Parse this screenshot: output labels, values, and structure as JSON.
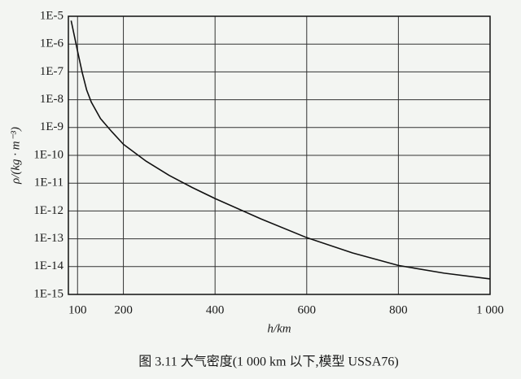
{
  "chart_data": {
    "type": "line",
    "y_label": "ρ/(kg · m⁻³)",
    "x_label": "h/km",
    "caption": "图 3.11   大气密度(1 000 km 以下,模型 USSA76)",
    "log_y": true,
    "grid": true,
    "x": [
      86,
      90,
      100,
      110,
      120,
      130,
      150,
      175,
      200,
      250,
      300,
      350,
      400,
      500,
      600,
      700,
      800,
      900,
      1000
    ],
    "series": [
      {
        "color": "#111111",
        "values": [
          6.96e-06,
          3.4e-06,
          5.6e-07,
          9.7e-08,
          2.2e-08,
          8.2e-09,
          2.1e-09,
          7e-10,
          2.5e-10,
          6.1e-11,
          1.9e-11,
          7e-12,
          2.8e-12,
          5.2e-13,
          1.1e-13,
          3.1e-14,
          1.1e-14,
          5.8e-15,
          3.6e-15
        ]
      }
    ],
    "xlim": [
      80,
      1000
    ],
    "xticks": [
      100,
      200,
      400,
      600,
      800,
      {
        "value": 1000,
        "label": "1 000"
      }
    ],
    "ylim": [
      1e-15,
      1e-05
    ],
    "yticks": [
      {
        "value": 1e-15,
        "label": "1E-15"
      },
      {
        "value": 1e-14,
        "label": "1E-14"
      },
      {
        "value": 1e-13,
        "label": "1E-13"
      },
      {
        "value": 1e-12,
        "label": "1E-12"
      },
      {
        "value": 1e-11,
        "label": "1E-11"
      },
      {
        "value": 1e-10,
        "label": "1E-10"
      },
      {
        "value": 1e-09,
        "label": "1E-9"
      },
      {
        "value": 1e-08,
        "label": "1E-8"
      },
      {
        "value": 1e-07,
        "label": "1E-7"
      },
      {
        "value": 1e-06,
        "label": "1E-6"
      },
      {
        "value": 1e-05,
        "label": "1E-5"
      }
    ]
  }
}
